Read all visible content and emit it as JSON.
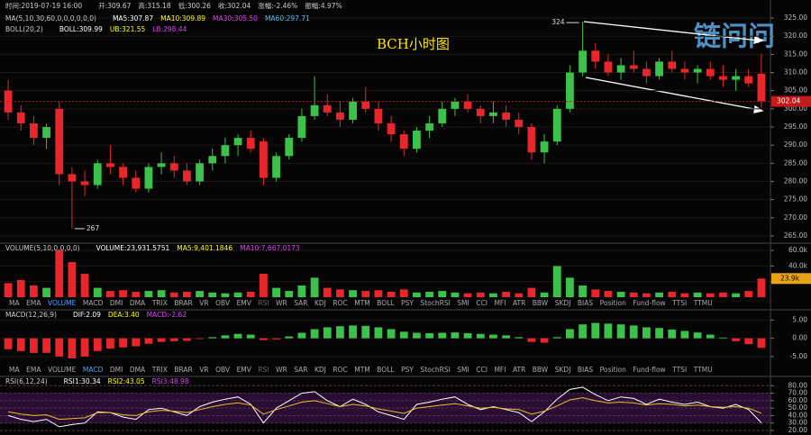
{
  "chart_data": [
    {
      "type": "candlestick",
      "title": "BCH小时图",
      "info": [
        [
          "时间:2019-07-19 16:00",
          "开:309.67",
          "高:315.18",
          "低:300.26",
          "收:302.04",
          "涨幅:-2.46%",
          "振幅:4.97%"
        ],
        [
          "MA(5,10,30,60,0,0,0,0,0,0)",
          "MA5:307.87",
          "MA10:309.89",
          "MA30:305.50",
          "MA60:297.71"
        ],
        [
          "BOLL(20,2)",
          "BOLL:309.99",
          "UB:321.55",
          "LB:298.44"
        ]
      ],
      "open": [
        305,
        299,
        296,
        292,
        300,
        282,
        280,
        279,
        285,
        284,
        281,
        278,
        284,
        285,
        283,
        280,
        285,
        287,
        290,
        292,
        291,
        281,
        287,
        292,
        298,
        301,
        299,
        297,
        302,
        300,
        296,
        293,
        289,
        294,
        296,
        300,
        302,
        300,
        298,
        299,
        297,
        295,
        288,
        291,
        300,
        310,
        316,
        313,
        310,
        312,
        311,
        309,
        313,
        311,
        310,
        311,
        309,
        308,
        309,
        309.67
      ],
      "high": [
        308,
        301,
        298,
        296,
        302,
        284,
        283,
        286,
        290,
        285,
        283,
        285,
        288,
        287,
        285,
        286,
        289,
        292,
        293,
        294,
        292,
        288,
        293,
        300,
        309,
        304,
        302,
        303,
        306,
        302,
        298,
        294,
        295,
        298,
        302,
        303,
        304,
        301,
        302,
        301,
        299,
        296,
        293,
        301,
        312,
        324,
        318,
        315,
        314,
        316,
        313,
        314,
        316,
        313,
        312,
        313,
        312,
        311,
        311,
        315.18
      ],
      "low": [
        297,
        294,
        290,
        289,
        279,
        267,
        276,
        278,
        282,
        279,
        277,
        277,
        282,
        281,
        279,
        279,
        283,
        285,
        287,
        288,
        279,
        280,
        286,
        291,
        297,
        298,
        295,
        296,
        299,
        294,
        291,
        287,
        288,
        292,
        295,
        298,
        299,
        296,
        296,
        295,
        293,
        286,
        285,
        290,
        299,
        309,
        311,
        309,
        308,
        310,
        307,
        308,
        310,
        308,
        307,
        308,
        306,
        305,
        306,
        300.26
      ],
      "close": [
        299,
        296,
        292,
        295,
        282,
        280,
        279,
        285,
        284,
        281,
        278,
        284,
        285,
        283,
        280,
        285,
        287,
        290,
        292,
        289,
        281,
        287,
        292,
        298,
        301,
        299,
        297,
        302,
        300,
        296,
        293,
        289,
        294,
        296,
        300,
        302,
        300,
        298,
        299,
        297,
        295,
        288,
        291,
        300,
        310,
        316,
        313,
        310,
        312,
        311,
        309,
        313,
        311,
        310,
        311,
        309,
        308,
        309,
        307,
        302.04
      ],
      "up_color": "#3cc14a",
      "down_color": "#e8262c",
      "ylim": [
        263.5,
        326.5
      ],
      "yticks": [
        {
          "value": 265,
          "label": "265.00"
        },
        {
          "value": 270,
          "label": "270.00"
        },
        {
          "value": 275,
          "label": "275.00"
        },
        {
          "value": 280,
          "label": "280.00"
        },
        {
          "value": 285,
          "label": "285.00"
        },
        {
          "value": 290,
          "label": "290.00"
        },
        {
          "value": 295,
          "label": "295.00"
        },
        {
          "value": 300,
          "label": "300.00"
        },
        {
          "value": 305,
          "label": "305.00"
        },
        {
          "value": 310,
          "label": "310.00"
        },
        {
          "value": 315,
          "label": "315.00"
        },
        {
          "value": 320,
          "label": "320.00"
        },
        {
          "value": 325,
          "label": "325.00"
        }
      ]
    },
    {
      "type": "volume",
      "info": [
        [
          "VOLUME(5,10,0,0,0,0)",
          "VOLUME:23,931.5751",
          "MA5:9,401.1846",
          "MA10:7,667.0173"
        ]
      ],
      "values": [
        18000,
        22000,
        15000,
        12000,
        60000,
        45000,
        30000,
        12000,
        8000,
        9000,
        7000,
        8000,
        9000,
        6000,
        7000,
        8000,
        6000,
        5000,
        6000,
        7000,
        30000,
        12000,
        8000,
        15000,
        25000,
        12000,
        10000,
        9000,
        8000,
        9000,
        7000,
        10000,
        6000,
        7000,
        8000,
        6000,
        5000,
        6000,
        5000,
        7000,
        5000,
        12000,
        6000,
        40000,
        25000,
        15000,
        10000,
        8000,
        7000,
        6000,
        5000,
        6000,
        7000,
        5000,
        6000,
        5000,
        6000,
        5000,
        8000,
        23931.5751
      ],
      "value_labels": [
        null,
        null,
        null,
        null,
        null,
        null,
        null,
        null,
        null,
        null,
        null,
        null,
        null,
        null,
        null,
        null,
        null,
        null,
        null,
        null,
        null,
        null,
        null,
        null,
        null,
        null,
        null,
        null,
        null,
        null,
        null,
        null,
        null,
        null,
        null,
        null,
        null,
        null,
        null,
        null,
        null,
        null,
        null,
        null,
        null,
        null,
        null,
        null,
        null,
        null,
        null,
        null,
        null,
        null,
        null,
        null,
        null,
        null,
        null,
        "23.9k"
      ],
      "ylim": [
        0,
        67000
      ],
      "yticks": [
        {
          "value": 20000,
          "label": "20.0k"
        },
        {
          "value": 40000,
          "label": "40.0k"
        },
        {
          "value": 60000,
          "label": "60.0k"
        }
      ]
    },
    {
      "type": "macd",
      "info": [
        [
          "MACD(12,26,9)",
          "DIF:2.09",
          "DEA:3.40",
          "MACD:-2.62"
        ]
      ],
      "values": [
        -3,
        -3.5,
        -4,
        -4,
        -5,
        -5.5,
        -5,
        -3.5,
        -2.8,
        -2.5,
        -2.2,
        -1.5,
        -1,
        -0.8,
        -0.7,
        -0.2,
        0.3,
        0.8,
        1.2,
        1,
        -0.5,
        -0.3,
        0.5,
        1.5,
        2.5,
        3,
        3.3,
        3.5,
        3.4,
        3,
        2.5,
        1.8,
        1.5,
        1.4,
        1.5,
        1.6,
        1.4,
        1.2,
        1,
        0.8,
        0.3,
        -1,
        -1.2,
        0.3,
        2.5,
        3.8,
        4.2,
        4,
        3.8,
        3.5,
        3,
        2.8,
        2.4,
        2,
        1.6,
        1,
        0.2,
        -0.8,
        -1.6,
        -2.62
      ],
      "ylim": [
        -7,
        7.3
      ],
      "yticks": [
        {
          "value": -5,
          "label": "-5.00"
        },
        {
          "value": 0,
          "label": "0.00"
        },
        {
          "value": 5,
          "label": "5.00"
        }
      ]
    },
    {
      "type": "rsi",
      "info": [
        [
          "RSI(6,12,24)",
          "RSI1:30.34",
          "RSI2:43.05",
          "RSI3:48.98"
        ]
      ],
      "series": [
        {
          "color": "#ffffff",
          "values": [
            40,
            35,
            32,
            35,
            25,
            28,
            30,
            45,
            44,
            38,
            35,
            48,
            50,
            45,
            40,
            52,
            58,
            62,
            65,
            55,
            30,
            50,
            60,
            70,
            72,
            60,
            52,
            62,
            55,
            45,
            40,
            35,
            55,
            58,
            62,
            65,
            55,
            48,
            52,
            48,
            44,
            32,
            45,
            62,
            75,
            78,
            68,
            60,
            65,
            63,
            55,
            62,
            58,
            55,
            58,
            52,
            50,
            55,
            48,
            30.34
          ]
        },
        {
          "color": "#e6c229",
          "values": [
            45,
            42,
            40,
            41,
            35,
            36,
            37,
            44,
            44,
            41,
            40,
            45,
            47,
            46,
            44,
            48,
            52,
            55,
            57,
            54,
            42,
            48,
            53,
            58,
            60,
            56,
            52,
            55,
            53,
            49,
            46,
            43,
            50,
            52,
            54,
            56,
            53,
            50,
            51,
            49,
            48,
            42,
            46,
            53,
            61,
            64,
            60,
            57,
            58,
            57,
            54,
            56,
            55,
            53,
            54,
            52,
            51,
            52,
            50,
            43.05
          ]
        }
      ],
      "ylim": [
        14,
        90
      ],
      "yticks": [
        {
          "value": 80,
          "label": "80.00"
        },
        {
          "value": 70,
          "label": "70.00"
        },
        {
          "value": 60,
          "label": "60.00"
        },
        {
          "value": 50,
          "label": "50.00"
        },
        {
          "value": 40,
          "label": "40.00"
        },
        {
          "value": 30,
          "label": "30.00"
        },
        {
          "value": 20,
          "label": "20.00"
        }
      ]
    }
  ],
  "indicator_tabs": [
    "MA",
    "EMA",
    "VOLUME",
    "MACD",
    "DMI",
    "DMA",
    "TRIX",
    "BRAR",
    "VR",
    "OBV",
    "EMV",
    "RSI",
    "WR",
    "SAR",
    "KDJ",
    "ROC",
    "MTM",
    "BOLL",
    "PSY",
    "StochRSI",
    "SMI",
    "CCI",
    "MFI",
    "ATR",
    "BBW",
    "SKDJ",
    "BIAS",
    "Position",
    "Fund-flow",
    "TTSI",
    "TTMU"
  ],
  "watermark": "链问问"
}
